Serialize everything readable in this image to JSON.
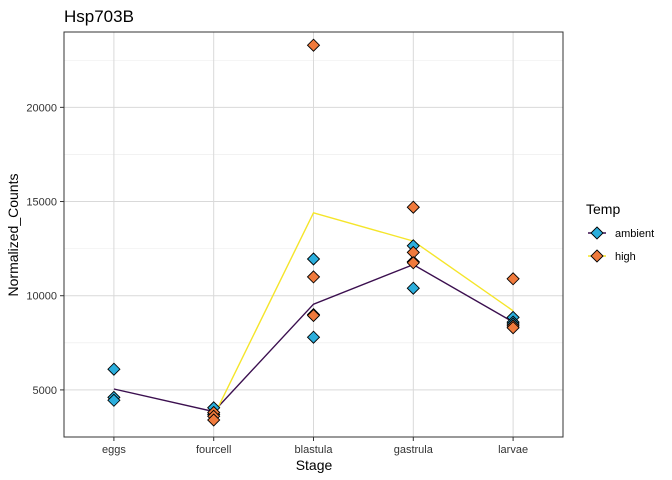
{
  "chart_data": {
    "type": "scatter",
    "title": "Hsp703B",
    "xlabel": "Stage",
    "ylabel": "Normalized_Counts",
    "categories": [
      "eggs",
      "fourcell",
      "blastula",
      "gastrula",
      "larvae"
    ],
    "ylim": [
      2500,
      24000
    ],
    "yticks": [
      5000,
      10000,
      15000,
      20000
    ],
    "grid": true,
    "legend": {
      "title": "Temp",
      "position": "right"
    },
    "series": [
      {
        "name": "ambient",
        "color": "#2BAEDC",
        "line_color": "#3B0F4F",
        "points": [
          {
            "x": "eggs",
            "y": 6100
          },
          {
            "x": "eggs",
            "y": 4600
          },
          {
            "x": "eggs",
            "y": 4450
          },
          {
            "x": "fourcell",
            "y": 4050
          },
          {
            "x": "fourcell",
            "y": 3700
          },
          {
            "x": "blastula",
            "y": 11950
          },
          {
            "x": "blastula",
            "y": 9000
          },
          {
            "x": "blastula",
            "y": 7800
          },
          {
            "x": "gastrula",
            "y": 12650
          },
          {
            "x": "gastrula",
            "y": 11800
          },
          {
            "x": "gastrula",
            "y": 10400
          },
          {
            "x": "larvae",
            "y": 8850
          },
          {
            "x": "larvae",
            "y": 8600
          },
          {
            "x": "larvae",
            "y": 8500
          }
        ],
        "mean": [
          5050,
          3850,
          9550,
          11650,
          8600
        ]
      },
      {
        "name": "high",
        "color": "#F07A3C",
        "line_color": "#F5E52A",
        "points": [
          {
            "x": "fourcell",
            "y": 3800
          },
          {
            "x": "fourcell",
            "y": 3600
          },
          {
            "x": "fourcell",
            "y": 3400
          },
          {
            "x": "blastula",
            "y": 23300
          },
          {
            "x": "blastula",
            "y": 11000
          },
          {
            "x": "blastula",
            "y": 8950
          },
          {
            "x": "gastrula",
            "y": 14700
          },
          {
            "x": "gastrula",
            "y": 12300
          },
          {
            "x": "gastrula",
            "y": 11750
          },
          {
            "x": "larvae",
            "y": 10900
          },
          {
            "x": "larvae",
            "y": 8400
          },
          {
            "x": "larvae",
            "y": 8300
          }
        ],
        "mean": [
          null,
          3600,
          14400,
          12900,
          9200
        ]
      }
    ]
  }
}
